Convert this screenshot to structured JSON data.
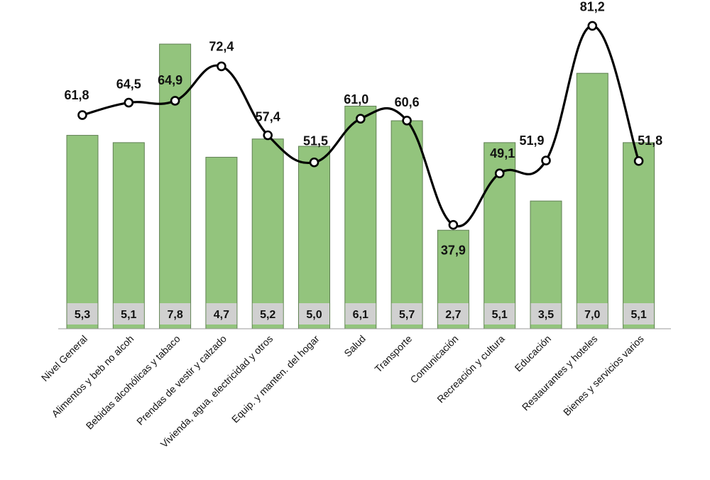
{
  "chart_data": {
    "type": "bar",
    "categories": [
      "Nivel General",
      "Alimentos y beb no alcoh",
      "Bebidas alcohólicas y tabaco",
      "Prendas de vestir y calzado",
      "Vivienda, agua, electricidad y otros",
      "Equip. y manten. del hogar",
      "Salud",
      "Transporte",
      "Comunicación",
      "Recreación y cultura",
      "Educación",
      "Restaurantes y hoteles",
      "Bienes y servicios varios"
    ],
    "series": [
      {
        "type": "bar",
        "values": [
          5.3,
          5.1,
          7.8,
          4.7,
          5.2,
          5.0,
          6.1,
          5.7,
          2.7,
          5.1,
          3.5,
          7.0,
          5.1
        ],
        "labels": [
          "5,3",
          "5,1",
          "7,8",
          "4,7",
          "5,2",
          "5,0",
          "6,1",
          "5,7",
          "2,7",
          "5,1",
          "3,5",
          "7,0",
          "5,1"
        ],
        "color": "#93c47d"
      },
      {
        "type": "line",
        "values": [
          61.8,
          64.5,
          64.9,
          72.4,
          57.4,
          51.5,
          61.0,
          60.6,
          37.9,
          49.1,
          51.9,
          81.2,
          51.8
        ],
        "labels": [
          "61,8",
          "64,5",
          "64,9",
          "72,4",
          "57,4",
          "51,5",
          "61,0",
          "60,6",
          "37,9",
          "49,1",
          "51,9",
          "81,2",
          "51,8"
        ],
        "color": "#000000",
        "smooth": true
      }
    ],
    "title": "",
    "xlabel": "",
    "ylabel": "",
    "legend": "none",
    "grid": false
  }
}
